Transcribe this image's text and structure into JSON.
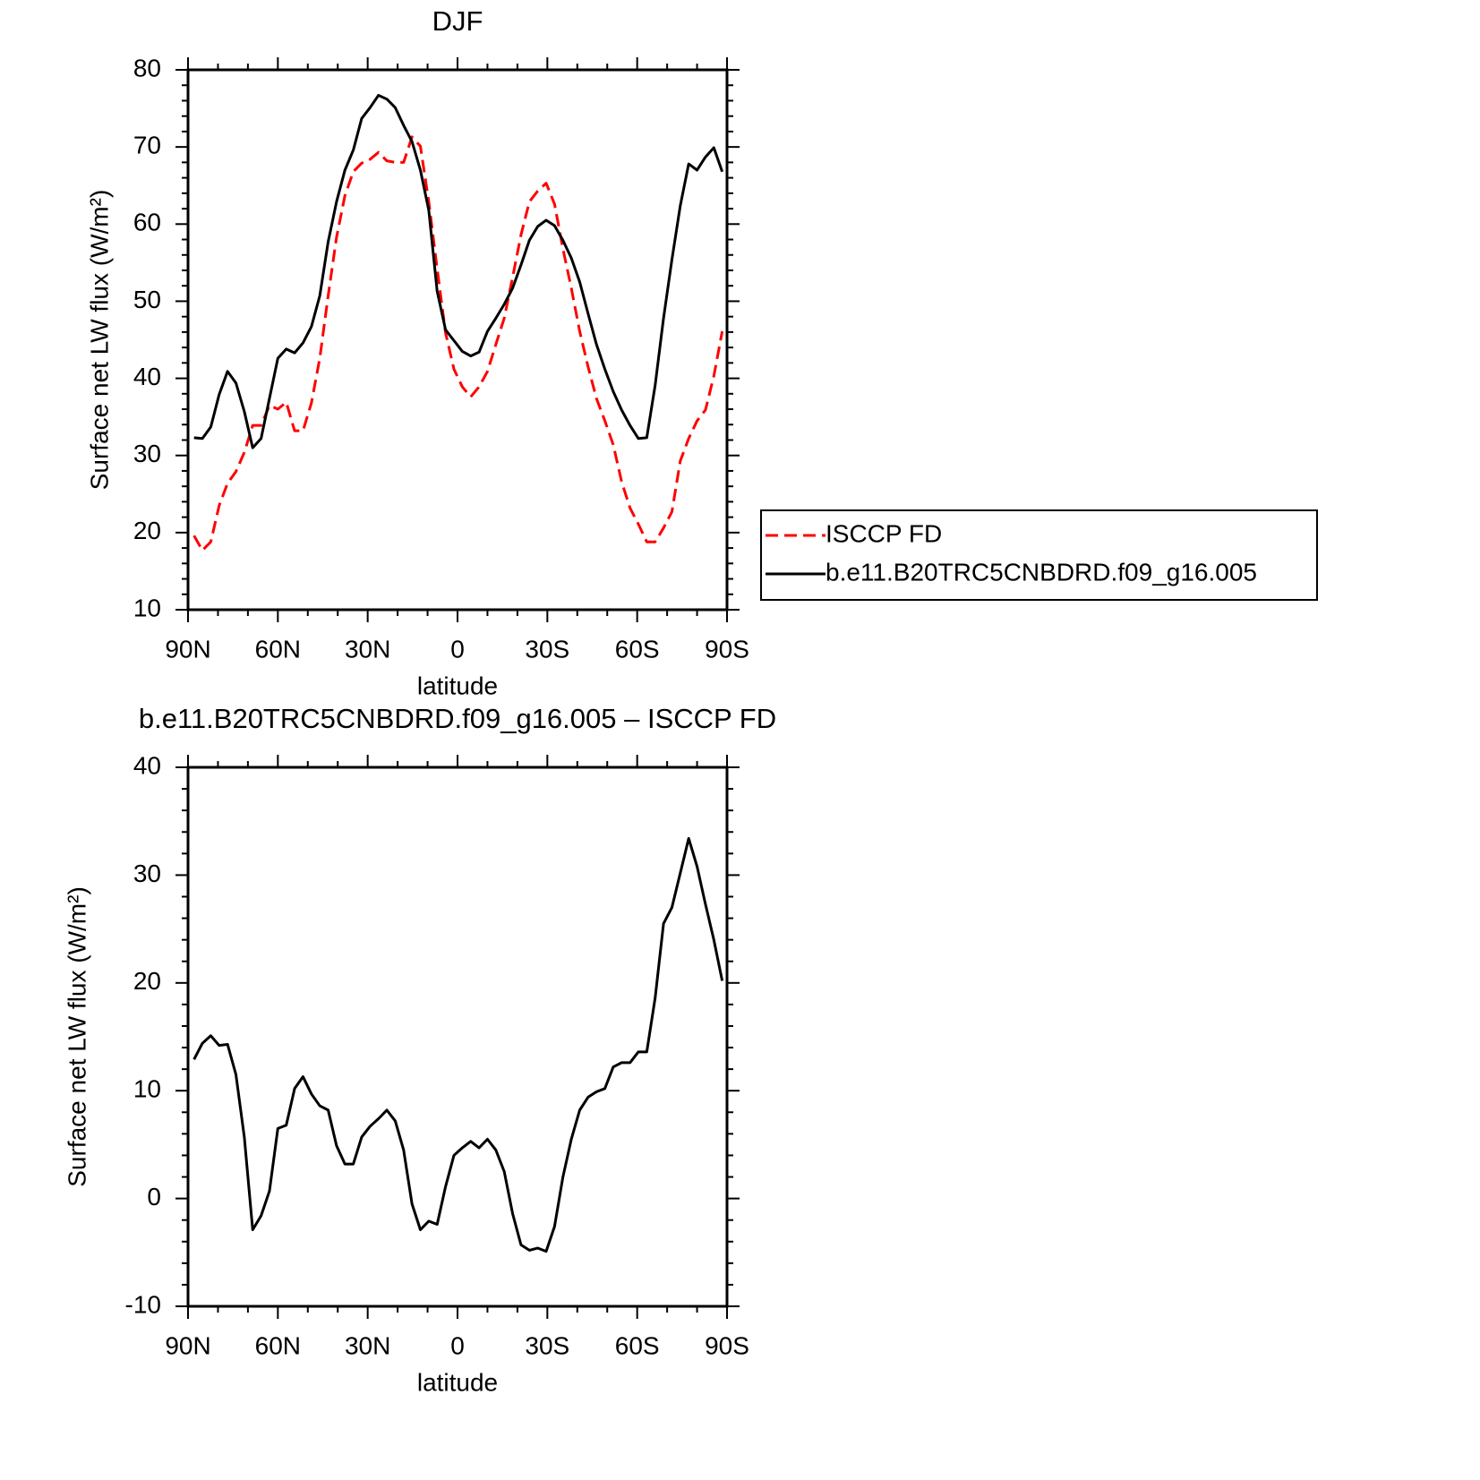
{
  "chart_data": [
    {
      "type": "line",
      "title": "DJF",
      "xlabel": "latitude",
      "ylabel": "Surface net LW flux (W/m²)",
      "xlim": [
        90,
        -90
      ],
      "xticks": [
        {
          "value": 90,
          "label": "90N"
        },
        {
          "value": 60,
          "label": "60N"
        },
        {
          "value": 30,
          "label": "30N"
        },
        0,
        {
          "value": -30,
          "label": "30S"
        },
        {
          "value": -60,
          "label": "60S"
        },
        {
          "value": -90,
          "label": "90S"
        }
      ],
      "xminorticks": [
        80,
        70,
        50,
        40,
        20,
        10,
        -10,
        -20,
        -40,
        -50,
        -70,
        -80
      ],
      "ylim": [
        10,
        80
      ],
      "yticks": [
        10,
        20,
        30,
        40,
        50,
        60,
        70,
        80
      ],
      "yminorticks": [
        12,
        14,
        16,
        18,
        22,
        24,
        26,
        28,
        32,
        34,
        36,
        38,
        42,
        44,
        46,
        48,
        52,
        54,
        56,
        58,
        62,
        64,
        66,
        68,
        72,
        74,
        76,
        78
      ],
      "legend": "right",
      "x": [
        88,
        85.2,
        82.4,
        79.6,
        76.8,
        74,
        71.2,
        68.4,
        65.6,
        62.8,
        60,
        57.2,
        54.4,
        51.6,
        48.8,
        46,
        43.2,
        40.4,
        37.6,
        34.8,
        32,
        29.2,
        26.4,
        23.6,
        20.8,
        18,
        15.2,
        12.4,
        9.6,
        6.8,
        4,
        1.2,
        -1.6,
        -4.4,
        -7.2,
        -10,
        -12.8,
        -15.6,
        -18.4,
        -21.2,
        -24,
        -26.8,
        -29.6,
        -32.4,
        -35.2,
        -38,
        -40.8,
        -43.6,
        -46.4,
        -49.2,
        -52,
        -54.8,
        -57.6,
        -60.4,
        -63.2,
        -66,
        -68.8,
        -71.6,
        -74.4,
        -77.2,
        -80,
        -82.8,
        -85.6,
        -88.4
      ],
      "series": [
        {
          "name": "ISCCP FD",
          "color": "#ff0000",
          "dash": true,
          "values": [
            19.6,
            17.7,
            18.8,
            23.5,
            26.4,
            27.9,
            30.4,
            33.9,
            33.9,
            36.5,
            36.0,
            36.9,
            33.2,
            33.2,
            36.8,
            42.6,
            50.7,
            58.3,
            63.7,
            66.8,
            67.9,
            68.4,
            69.3,
            68.2,
            68.0,
            68.0,
            71.3,
            70.1,
            62.9,
            54.2,
            45.9,
            41.2,
            38.9,
            37.6,
            38.9,
            40.9,
            44.4,
            47.8,
            53.1,
            58.6,
            62.9,
            64.3,
            65.3,
            62.6,
            56.8,
            51.7,
            46.1,
            41.5,
            37.4,
            34.5,
            31.4,
            26.6,
            23.2,
            21.1,
            18.8,
            18.8,
            20.6,
            22.7,
            29.3,
            32.2,
            34.5,
            35.9,
            40.3,
            46.1
          ]
        },
        {
          "name": "b.e11.B20TRC5CNBDRD.f09_g16.005",
          "color": "#000000",
          "dash": false,
          "values": [
            32.3,
            32.2,
            33.7,
            37.9,
            40.9,
            39.4,
            35.7,
            31.0,
            32.2,
            37.4,
            42.6,
            43.8,
            43.3,
            44.6,
            46.7,
            50.7,
            57.7,
            62.9,
            67.0,
            69.6,
            73.7,
            75.1,
            76.7,
            76.2,
            75.1,
            72.8,
            70.7,
            67.0,
            61.8,
            51.3,
            46.3,
            44.9,
            43.5,
            42.9,
            43.4,
            46.1,
            47.8,
            49.6,
            51.7,
            54.7,
            57.9,
            59.7,
            60.5,
            59.8,
            57.9,
            55.6,
            52.5,
            48.4,
            44.4,
            41.2,
            38.3,
            35.9,
            33.9,
            32.2,
            32.3,
            39.1,
            47.8,
            55.4,
            62.4,
            67.8,
            67.0,
            68.7,
            69.9,
            66.8
          ]
        }
      ]
    },
    {
      "type": "line",
      "title": "b.e11.B20TRC5CNBDRD.f09_g16.005 – ISCCP FD",
      "xlabel": "latitude",
      "ylabel": "Surface net LW flux (W/m²)",
      "xlim": [
        90,
        -90
      ],
      "xticks": [
        {
          "value": 90,
          "label": "90N"
        },
        {
          "value": 60,
          "label": "60N"
        },
        {
          "value": 30,
          "label": "30N"
        },
        0,
        {
          "value": -30,
          "label": "30S"
        },
        {
          "value": -60,
          "label": "60S"
        },
        {
          "value": -90,
          "label": "90S"
        }
      ],
      "xminorticks": [
        80,
        70,
        50,
        40,
        20,
        10,
        -10,
        -20,
        -40,
        -50,
        -70,
        -80
      ],
      "ylim": [
        -10,
        40
      ],
      "yticks": [
        -10,
        0,
        10,
        20,
        30,
        40
      ],
      "yminorticks": [
        -8,
        -6,
        -4,
        -2,
        2,
        4,
        6,
        8,
        12,
        14,
        16,
        18,
        22,
        24,
        26,
        28,
        32,
        34,
        36,
        38
      ],
      "x": [
        88,
        85.2,
        82.4,
        79.6,
        76.8,
        74,
        71.2,
        68.4,
        65.6,
        62.8,
        60,
        57.2,
        54.4,
        51.6,
        48.8,
        46,
        43.2,
        40.4,
        37.6,
        34.8,
        32,
        29.2,
        26.4,
        23.6,
        20.8,
        18,
        15.2,
        12.4,
        9.6,
        6.8,
        4,
        1.2,
        -1.6,
        -4.4,
        -7.2,
        -10,
        -12.8,
        -15.6,
        -18.4,
        -21.2,
        -24,
        -26.8,
        -29.6,
        -32.4,
        -35.2,
        -38,
        -40.8,
        -43.6,
        -46.4,
        -49.2,
        -52,
        -54.8,
        -57.6,
        -60.4,
        -63.2,
        -66,
        -68.8,
        -71.6,
        -74.4,
        -77.2,
        -80,
        -82.8,
        -85.6,
        -88.4
      ],
      "series": [
        {
          "color": "#000000",
          "dash": false,
          "values": [
            12.9,
            14.4,
            15.1,
            14.2,
            14.3,
            11.5,
            5.7,
            -2.9,
            -1.6,
            0.7,
            6.5,
            6.8,
            10.2,
            11.3,
            9.7,
            8.6,
            8.2,
            4.9,
            3.2,
            3.2,
            5.7,
            6.7,
            7.4,
            8.2,
            7.2,
            4.5,
            -0.5,
            -2.9,
            -2.1,
            -2.4,
            1.1,
            4.0,
            4.7,
            5.3,
            4.7,
            5.5,
            4.5,
            2.5,
            -1.4,
            -4.3,
            -4.8,
            -4.6,
            -4.9,
            -2.6,
            2.0,
            5.5,
            8.2,
            9.4,
            9.9,
            10.2,
            12.2,
            12.6,
            12.6,
            13.6,
            13.6,
            18.6,
            25.5,
            27.0,
            30.2,
            33.4,
            30.8,
            27.3,
            24.0,
            20.2
          ]
        }
      ]
    }
  ]
}
